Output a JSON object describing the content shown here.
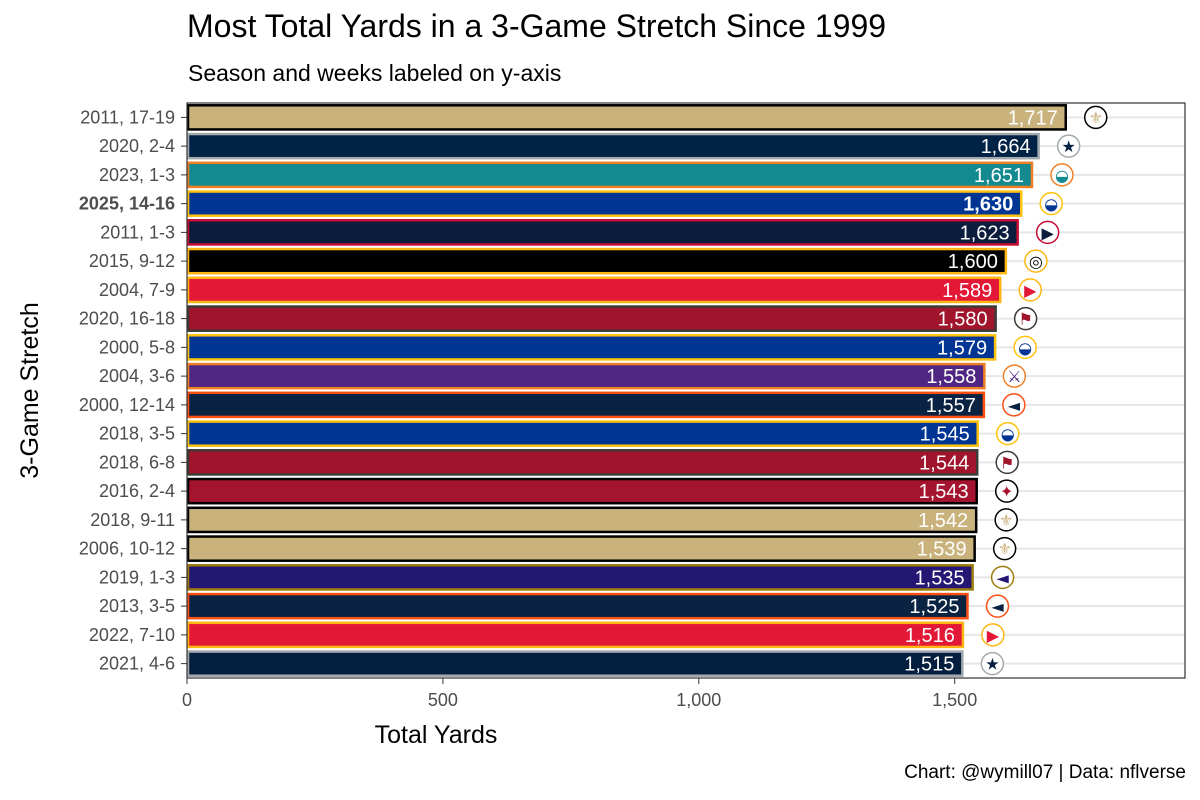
{
  "chart_data": {
    "type": "bar",
    "orientation": "horizontal",
    "title": "Most Total Yards in a 3-Game Stretch Since 1999",
    "subtitle": "Season and weeks labeled on y-axis",
    "caption": "Chart: @wymill07 | Data: nflverse",
    "xlabel": "Total Yards",
    "ylabel": "3-Game Stretch",
    "xlim": [
      0,
      1950
    ],
    "x_ticks": [
      0,
      500,
      1000,
      1500
    ],
    "x_tick_labels": [
      "0",
      "500",
      "1,000",
      "1,500"
    ],
    "grid": "major-y",
    "highlighted_category": "2025, 14-16",
    "categories": [
      "2011, 17-19",
      "2020, 2-4",
      "2023, 1-3",
      "2025, 14-16",
      "2011, 1-3",
      "2015, 9-12",
      "2004, 7-9",
      "2020, 16-18",
      "2000, 5-8",
      "2004, 3-6",
      "2000, 12-14",
      "2018, 3-5",
      "2018, 6-8",
      "2016, 2-4",
      "2018, 9-11",
      "2006, 10-12",
      "2019, 1-3",
      "2013, 3-5",
      "2022, 7-10",
      "2021, 4-6"
    ],
    "values": [
      1717,
      1664,
      1651,
      1630,
      1623,
      1600,
      1589,
      1580,
      1579,
      1558,
      1557,
      1545,
      1544,
      1543,
      1542,
      1539,
      1535,
      1525,
      1516,
      1515
    ],
    "value_labels": [
      "1,717",
      "1,664",
      "1,651",
      "1,630",
      "1,623",
      "1,600",
      "1,589",
      "1,580",
      "1,579",
      "1,558",
      "1,557",
      "1,545",
      "1,544",
      "1,543",
      "1,542",
      "1,539",
      "1,535",
      "1,525",
      "1,516",
      "1,515"
    ],
    "bar_fill_colors": [
      "#C9B27C",
      "#002244",
      "#138A8F",
      "#003594",
      "#0B1C3D",
      "#000000",
      "#E31837",
      "#A0142C",
      "#003594",
      "#4F2683",
      "#0A2343",
      "#003594",
      "#A0142C",
      "#A5142E",
      "#C9B27C",
      "#C9B27C",
      "#241773",
      "#0A2343",
      "#E31837",
      "#031E3F"
    ],
    "bar_outline_colors": [
      "#000000",
      "#A3AAAE",
      "#F07F24",
      "#FFC20E",
      "#C60C30",
      "#FFB612",
      "#FFB612",
      "#3D3A36",
      "#FFC20E",
      "#F07F24",
      "#FB4F14",
      "#FFC20E",
      "#3D3A36",
      "#000000",
      "#000000",
      "#000000",
      "#9E7C0C",
      "#FB4F14",
      "#FFB612",
      "#A3AAAE"
    ],
    "value_label_colors": [
      "#ffffff",
      "#ffffff",
      "#ffffff",
      "#ffffff",
      "#ffffff",
      "#ffffff",
      "#ffffff",
      "#ffffff",
      "#ffffff",
      "#ffffff",
      "#ffffff",
      "#ffffff",
      "#ffffff",
      "#ffffff",
      "#ffffff",
      "#ffffff",
      "#ffffff",
      "#ffffff",
      "#ffffff",
      "#ffffff"
    ],
    "team_logos": [
      "saints-logo-icon",
      "cowboys-logo-icon",
      "dolphins-logo-icon",
      "rams-logo-icon",
      "patriots-logo-icon",
      "steelers-logo-icon",
      "chiefs-logo-icon",
      "buccaneers-logo-icon",
      "rams-logo-icon",
      "vikings-logo-icon",
      "broncos-logo-icon",
      "rams-logo-icon",
      "buccaneers-logo-icon",
      "falcons-logo-icon",
      "saints-logo-icon",
      "saints-logo-icon",
      "ravens-logo-icon",
      "broncos-logo-icon",
      "chiefs-logo-icon",
      "cowboys-logo-icon"
    ]
  }
}
